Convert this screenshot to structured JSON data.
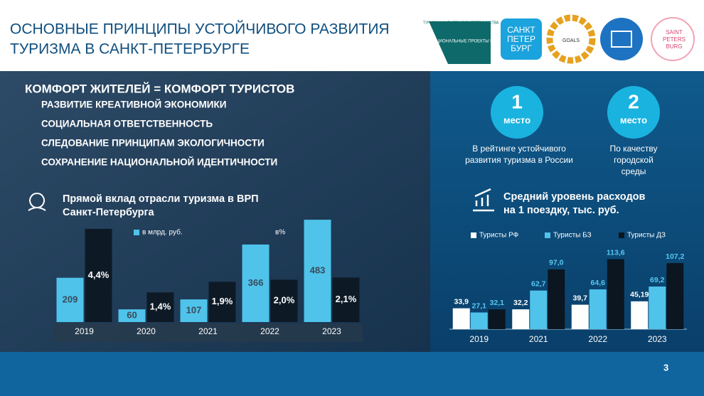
{
  "header": {
    "title_line1": "ОСНОВНЫЕ ПРИНЦИПЫ УСТОЙЧИВОГО РАЗВИТИЯ",
    "title_line2": "ТУРИЗМА В САНКТ-ПЕТЕРБУРГЕ",
    "logo1_top": "ТУРИЗМ И ИНДУСТРИЯ ГОСТЕПРИИМСТВА",
    "logo1_main": "НАЦИОНАЛЬНЫЕ ПРОЕКТЫ РОССИИ",
    "logo2": [
      "САНКТ",
      "ПЕТЕР",
      "БУРГ"
    ],
    "logo3": "GOALS",
    "logo5": [
      "SAINT",
      "PETERS",
      "BURG"
    ]
  },
  "principles": {
    "heading": "КОМФОРТ ЖИТЕЛЕЙ = КОМФОРТ ТУРИСТОВ",
    "items": [
      "РАЗВИТИЕ КРЕАТИВНОЙ ЭКОНОМИКИ",
      "СОЦИАЛЬНАЯ ОТВЕТСТВЕННОСТЬ",
      "СЛЕДОВАНИЕ ПРИНЦИПАМ ЭКОЛОГИЧНОСТИ",
      "СОХРАНЕНИЕ НАЦИОНАЛЬНОЙ ИДЕНТИЧНОСТИ"
    ]
  },
  "ranks": [
    {
      "number": "1",
      "unit": "место",
      "caption": [
        "В рейтинге устойчивого",
        "развития туризма в России"
      ]
    },
    {
      "number": "2",
      "unit": "место",
      "caption": [
        "По качеству",
        "городской",
        "среды"
      ]
    }
  ],
  "page_number": "3",
  "chart_data": [
    {
      "type": "bar",
      "title": [
        "Прямой вклад отрасли туризма в ВРП",
        "Санкт-Петербурга"
      ],
      "categories": [
        "2019",
        "2020",
        "2021",
        "2022",
        "2023"
      ],
      "ylim": [
        0,
        500
      ],
      "y2lim": [
        0,
        5
      ],
      "series": [
        {
          "name": "в млрд. руб.",
          "color": "#4fc3ea",
          "values": [
            209,
            60,
            107,
            366,
            483
          ]
        },
        {
          "name": "в%",
          "color": "#0d1a26",
          "axis": "y2",
          "values": [
            4.4,
            1.4,
            1.9,
            2.0,
            2.1
          ],
          "value_labels": [
            "4,4%",
            "1,4%",
            "1,9%",
            "2,0%",
            "2,1%"
          ]
        }
      ]
    },
    {
      "type": "bar",
      "title": [
        "Средний уровень расходов",
        "на 1 поездку, тыс. руб."
      ],
      "categories": [
        "2019",
        "2021",
        "2022",
        "2023"
      ],
      "ylim": [
        0,
        120
      ],
      "series": [
        {
          "name": "Туристы РФ",
          "color": "#ffffff",
          "values": [
            33.9,
            32.2,
            39.7,
            45.19
          ],
          "value_labels": [
            "33,9",
            "32,2",
            "39,7",
            "45,19"
          ]
        },
        {
          "name": "Туристы БЗ",
          "color": "#4fc3ea",
          "values": [
            27.1,
            62.7,
            64.6,
            69.2
          ],
          "value_labels": [
            "27,1",
            "62,7",
            "64,6",
            "69,2"
          ]
        },
        {
          "name": "Туристы ДЗ",
          "color": "#0b1620",
          "values": [
            32.1,
            97.0,
            113.6,
            107.2
          ],
          "value_labels": [
            "32,1",
            "97,0",
            "113,6",
            "107,2"
          ]
        }
      ]
    }
  ]
}
